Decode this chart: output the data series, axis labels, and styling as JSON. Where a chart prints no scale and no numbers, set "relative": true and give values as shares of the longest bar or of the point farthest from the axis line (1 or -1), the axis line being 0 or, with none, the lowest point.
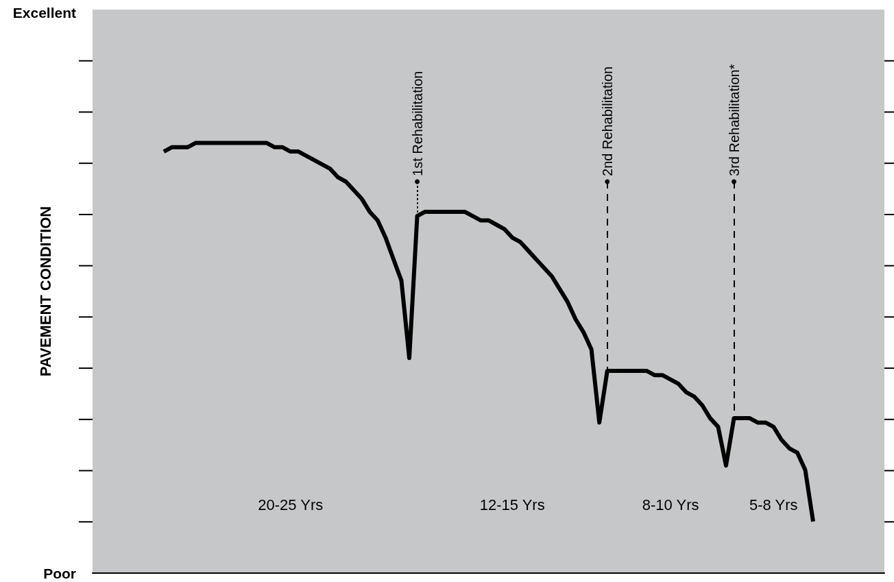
{
  "chart_data": {
    "type": "line",
    "relative": true,
    "ylabel": "PAVEMENT CONDITION",
    "marker": "none",
    "categories": [
      null,
      null,
      null,
      null,
      null,
      null,
      null,
      null,
      null,
      null,
      null,
      null,
      null,
      null,
      null,
      null,
      null,
      null,
      null,
      null,
      null,
      null,
      null,
      null,
      null,
      null,
      null,
      null,
      null,
      null,
      null,
      null,
      null,
      null,
      null,
      null,
      null,
      null,
      null,
      null,
      null,
      null,
      null,
      null,
      null,
      null,
      null,
      null,
      null,
      null,
      null,
      null,
      null,
      null,
      null,
      null,
      null,
      null,
      null,
      null,
      null,
      null,
      null,
      null,
      null,
      null,
      null,
      null,
      null,
      null,
      null,
      null,
      null,
      null,
      null,
      null,
      null,
      null,
      null,
      null,
      null,
      null,
      null,
      null,
      null,
      null,
      null,
      null,
      null,
      null,
      null,
      null,
      null,
      null,
      null,
      null,
      null,
      null,
      null,
      null,
      null
    ],
    "series": [
      {
        "color": "#000000",
        "line_style": "solid",
        "values": [
          null,
          null,
          null,
          null,
          null,
          null,
          null,
          null,
          null,
          0.98,
          0.99,
          0.99,
          0.99,
          1,
          1,
          1,
          1,
          1,
          1,
          1,
          1,
          1,
          1,
          0.99,
          0.99,
          0.98,
          0.98,
          0.97,
          0.96,
          0.95,
          0.94,
          0.92,
          0.91,
          0.89,
          0.87,
          0.84,
          0.82,
          0.78,
          0.73,
          0.68,
          0.5,
          0.83,
          0.84,
          0.84,
          0.84,
          0.84,
          0.84,
          0.84,
          0.83,
          0.82,
          0.82,
          0.81,
          0.8,
          0.78,
          0.77,
          0.75,
          0.73,
          0.71,
          0.69,
          0.66,
          0.63,
          0.59,
          0.56,
          0.52,
          0.35,
          0.47,
          0.47,
          0.47,
          0.47,
          0.47,
          0.47,
          0.46,
          0.46,
          0.45,
          0.44,
          0.42,
          0.41,
          0.39,
          0.36,
          0.34,
          0.25,
          0.36,
          0.36,
          0.36,
          0.35,
          0.35,
          0.34,
          0.31,
          0.29,
          0.28,
          0.24,
          0.12,
          null,
          null,
          null,
          null,
          null,
          null,
          null,
          null,
          null
        ]
      },
      {
        "name": "1st Rehabilitation",
        "color": "#000000",
        "line_style": "dotted",
        "values": [
          null,
          null,
          null,
          null,
          null,
          null,
          null,
          null,
          null,
          null,
          null,
          null,
          null,
          null,
          null,
          null,
          null,
          null,
          null,
          null,
          null,
          null,
          null,
          null,
          null,
          null,
          null,
          null,
          null,
          null,
          null,
          null,
          null,
          null,
          null,
          null,
          null,
          null,
          null,
          null,
          null,
          0.91,
          null,
          null,
          null,
          null,
          null,
          null,
          null,
          null,
          null,
          null,
          null,
          null,
          null,
          null,
          null,
          null,
          null,
          null,
          null,
          null,
          null,
          null,
          null,
          null,
          null,
          null,
          null,
          null,
          null,
          null,
          null,
          null,
          null,
          null,
          null,
          null,
          null,
          null,
          null,
          null,
          null,
          null,
          null,
          null,
          null,
          null,
          null,
          null,
          null,
          null,
          null,
          null,
          null,
          null,
          null,
          null,
          null,
          null,
          null
        ]
      },
      {
        "name": "2nd Rehabilitation",
        "color": "#000000",
        "line_style": "dashed",
        "values": [
          null,
          null,
          null,
          null,
          null,
          null,
          null,
          null,
          null,
          null,
          null,
          null,
          null,
          null,
          null,
          null,
          null,
          null,
          null,
          null,
          null,
          null,
          null,
          null,
          null,
          null,
          null,
          null,
          null,
          null,
          null,
          null,
          null,
          null,
          null,
          null,
          null,
          null,
          null,
          null,
          null,
          null,
          null,
          null,
          null,
          null,
          null,
          null,
          null,
          null,
          null,
          null,
          null,
          null,
          null,
          null,
          null,
          null,
          null,
          null,
          null,
          null,
          null,
          null,
          null,
          0.91,
          null,
          null,
          null,
          null,
          null,
          null,
          null,
          null,
          null,
          null,
          null,
          null,
          null,
          null,
          null,
          null,
          null,
          null,
          null,
          null,
          null,
          null,
          null,
          null,
          null,
          null,
          null,
          null,
          null,
          null,
          null,
          null,
          null,
          null,
          null
        ]
      },
      {
        "name": "3rd Rehabilitation*",
        "color": "#000000",
        "line_style": "dashed",
        "values": [
          null,
          null,
          null,
          null,
          null,
          null,
          null,
          null,
          null,
          null,
          null,
          null,
          null,
          null,
          null,
          null,
          null,
          null,
          null,
          null,
          null,
          null,
          null,
          null,
          null,
          null,
          null,
          null,
          null,
          null,
          null,
          null,
          null,
          null,
          null,
          null,
          null,
          null,
          null,
          null,
          null,
          null,
          null,
          null,
          null,
          null,
          null,
          null,
          null,
          null,
          null,
          null,
          null,
          null,
          null,
          null,
          null,
          null,
          null,
          null,
          null,
          null,
          null,
          null,
          null,
          null,
          null,
          null,
          null,
          null,
          null,
          null,
          null,
          null,
          null,
          null,
          null,
          null,
          null,
          null,
          null,
          0.91,
          null,
          null,
          null,
          null,
          null,
          null,
          null,
          null,
          null,
          null,
          null,
          null,
          null,
          null,
          null,
          null,
          null,
          null,
          null
        ]
      }
    ],
    "annotations": [
      "Excellent",
      "Poor",
      "20-25 Yrs",
      "12-15 Yrs",
      "8-10 Yrs",
      "5-8 Yrs"
    ]
  }
}
